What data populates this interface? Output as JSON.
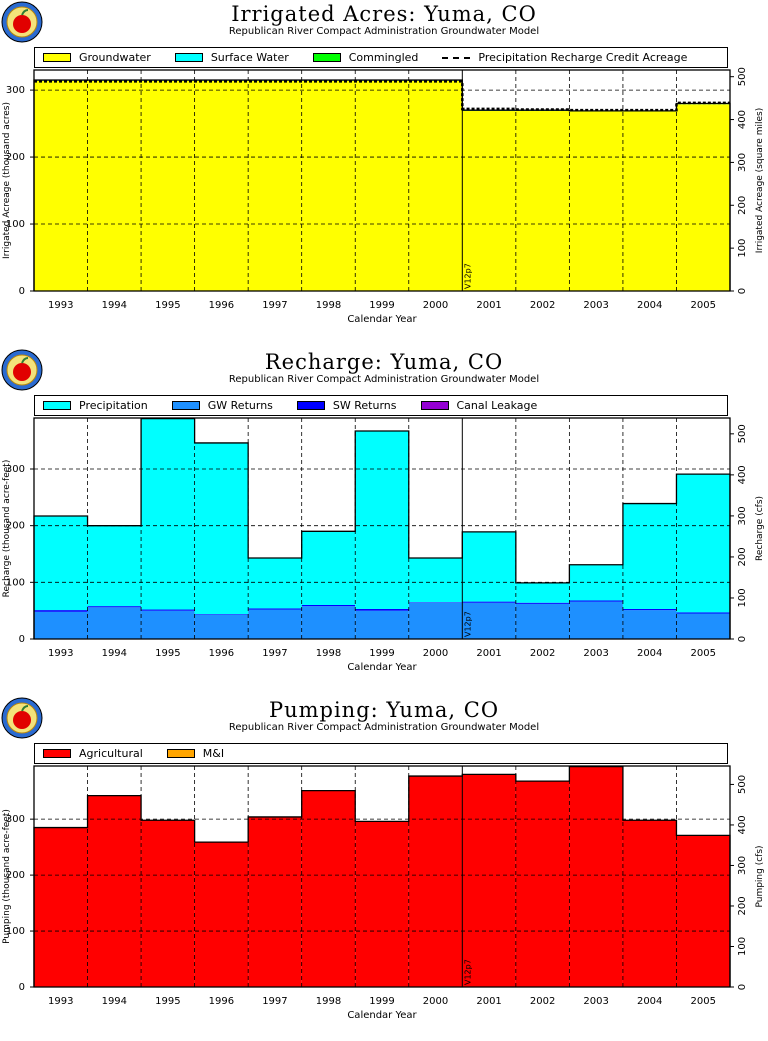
{
  "colors": {
    "groundwater": "#ffff00",
    "surface_water": "#00ffff",
    "commingled": "#00ff00",
    "precipitation": "#00ffff",
    "gw_returns": "#1e90ff",
    "sw_returns": "#0000ff",
    "canal_leakage": "#9400d3",
    "agricultural": "#ff0000",
    "mi": "#ffa500"
  },
  "icons": {
    "logo": "red-apple-logo-icon"
  },
  "chart_data": [
    {
      "type": "area",
      "title": "Irrigated Acres: Yuma, CO",
      "subtitle": "Republican River Compact Administration Groundwater Model",
      "xlabel": "Calendar Year",
      "ylabel": "Irrigated Acreage (thousand acres)",
      "ylabel_right": "Irrigated Acreage (square miles)",
      "ylim": [
        0,
        330
      ],
      "yticks": [
        "0",
        "100",
        "200",
        "300"
      ],
      "ylim_right": [
        0,
        515.6
      ],
      "yticks_right": [
        "0",
        "100",
        "200",
        "300",
        "400",
        "500"
      ],
      "categories": [
        "1993",
        "1994",
        "1995",
        "1996",
        "1997",
        "1998",
        "1999",
        "2000",
        "2001",
        "2002",
        "2003",
        "2004",
        "2005"
      ],
      "marker": {
        "label": "V12p7",
        "after_index": 7
      },
      "legend": [
        {
          "label": "Groundwater",
          "kind": "swatch",
          "color_key": "groundwater"
        },
        {
          "label": "Surface Water",
          "kind": "swatch",
          "color_key": "surface_water"
        },
        {
          "label": "Commingled",
          "kind": "swatch",
          "color_key": "commingled"
        },
        {
          "label": "Precipitation Recharge Credit Acreage",
          "kind": "dash"
        }
      ],
      "series": [
        {
          "name": "Groundwater",
          "color_key": "groundwater",
          "values": [
            314,
            314,
            314,
            314,
            314,
            314,
            314,
            314,
            269,
            269,
            268,
            268,
            279
          ]
        },
        {
          "name": "Surface Water",
          "color_key": "surface_water",
          "values": [
            1,
            1,
            1,
            1,
            1,
            1,
            1,
            1,
            1,
            1,
            1,
            1,
            1
          ]
        },
        {
          "name": "Commingled",
          "color_key": "commingled",
          "values": [
            0,
            0,
            0,
            0,
            0,
            0,
            0,
            0,
            0,
            0,
            0,
            0,
            0
          ]
        }
      ],
      "line": {
        "name": "Precipitation Recharge Credit Acreage",
        "values": [
          313,
          313,
          313,
          313,
          313,
          313,
          313,
          313,
          272,
          271,
          270,
          270,
          281
        ]
      }
    },
    {
      "type": "area",
      "title": "Recharge: Yuma, CO",
      "subtitle": "Republican River Compact Administration Groundwater Model",
      "xlabel": "Calendar Year",
      "ylabel": "Recharge (thousand acre-feet)",
      "ylabel_right": "Recharge (cfs)",
      "ylim": [
        0,
        390
      ],
      "yticks": [
        "0",
        "100",
        "200",
        "300"
      ],
      "ylim_right": [
        0,
        538.6
      ],
      "yticks_right": [
        "0",
        "100",
        "200",
        "300",
        "400",
        "500"
      ],
      "categories": [
        "1993",
        "1994",
        "1995",
        "1996",
        "1997",
        "1998",
        "1999",
        "2000",
        "2001",
        "2002",
        "2003",
        "2004",
        "2005"
      ],
      "marker": {
        "label": "V12p7",
        "after_index": 7
      },
      "legend": [
        {
          "label": "Precipitation",
          "kind": "swatch",
          "color_key": "precipitation"
        },
        {
          "label": "GW Returns",
          "kind": "swatch",
          "color_key": "gw_returns"
        },
        {
          "label": "SW Returns",
          "kind": "swatch",
          "color_key": "sw_returns"
        },
        {
          "label": "Canal Leakage",
          "kind": "swatch",
          "color_key": "canal_leakage"
        }
      ],
      "series": [
        {
          "name": "GW Returns",
          "color_key": "gw_returns",
          "values": [
            48,
            56,
            50,
            43,
            52,
            58,
            50,
            64,
            64,
            62,
            66,
            51,
            45
          ]
        },
        {
          "name": "SW Returns",
          "color_key": "sw_returns",
          "values": [
            3,
            2,
            2,
            1,
            2,
            2,
            3,
            1,
            2,
            2,
            2,
            2,
            2
          ]
        },
        {
          "name": "Canal Leakage",
          "color_key": "canal_leakage",
          "values": [
            0,
            0,
            0,
            0,
            0,
            0,
            0,
            0,
            0,
            0,
            0,
            0,
            0
          ]
        },
        {
          "name": "Precipitation",
          "color_key": "precipitation",
          "values": [
            166,
            142,
            337,
            302,
            89,
            130,
            314,
            78,
            123,
            35,
            63,
            186,
            244
          ]
        }
      ]
    },
    {
      "type": "area",
      "title": "Pumping: Yuma, CO",
      "subtitle": "Republican River Compact Administration Groundwater Model",
      "xlabel": "Calendar Year",
      "ylabel": "Pumping (thousand acre-feet)",
      "ylabel_right": "Pumping (cfs)",
      "ylim": [
        0,
        395
      ],
      "yticks": [
        "0",
        "100",
        "200",
        "300"
      ],
      "ylim_right": [
        0,
        545.5
      ],
      "yticks_right": [
        "0",
        "100",
        "200",
        "300",
        "400",
        "500"
      ],
      "categories": [
        "1993",
        "1994",
        "1995",
        "1996",
        "1997",
        "1998",
        "1999",
        "2000",
        "2001",
        "2002",
        "2003",
        "2004",
        "2005"
      ],
      "marker": {
        "label": "V12p7",
        "after_index": 7
      },
      "legend": [
        {
          "label": "Agricultural",
          "kind": "swatch",
          "color_key": "agricultural"
        },
        {
          "label": "M&I",
          "kind": "swatch",
          "color_key": "mi"
        }
      ],
      "series": [
        {
          "name": "Agricultural",
          "color_key": "agricultural",
          "values": [
            285,
            342,
            298,
            259,
            304,
            351,
            296,
            377,
            380,
            368,
            394,
            298,
            271
          ]
        },
        {
          "name": "M&I",
          "color_key": "mi",
          "values": [
            0,
            0,
            0,
            0,
            0,
            0,
            0,
            0,
            0,
            0,
            0,
            0,
            0
          ]
        }
      ]
    }
  ]
}
